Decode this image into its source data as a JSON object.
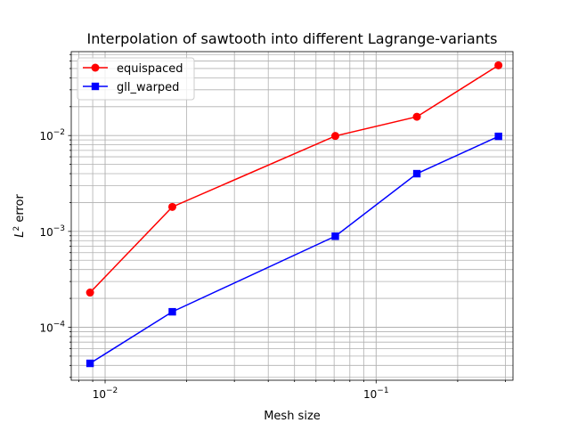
{
  "chart_data": {
    "type": "line",
    "title": "Interpolation of sawtooth into different Lagrange-variants",
    "xlabel": "Mesh size",
    "ylabel_prefix": "L",
    "ylabel_sup": "2",
    "ylabel_suffix": " error",
    "xscale": "log",
    "yscale": "log",
    "xlim": [
      0.0075,
      0.32
    ],
    "ylim": [
      2.8e-05,
      0.075
    ],
    "grid": "major and minor",
    "legend_position": "top-left",
    "x_ticks": [
      {
        "value": 0.01,
        "base": "10",
        "exp": "−2"
      },
      {
        "value": 0.1,
        "base": "10",
        "exp": "−1"
      }
    ],
    "y_ticks": [
      {
        "value": 0.0001,
        "base": "10",
        "exp": "−4"
      },
      {
        "value": 0.001,
        "base": "10",
        "exp": "−3"
      },
      {
        "value": 0.01,
        "base": "10",
        "exp": "−2"
      }
    ],
    "series": [
      {
        "name": "equispaced",
        "color": "#ff0000",
        "marker": "circle",
        "x": [
          0.0088,
          0.0177,
          0.0707,
          0.1414,
          0.2828
        ],
        "y": [
          0.00023,
          0.0018,
          0.0099,
          0.0157,
          0.054
        ]
      },
      {
        "name": "gll_warped",
        "color": "#0000ff",
        "marker": "square",
        "x": [
          0.0088,
          0.0177,
          0.0707,
          0.1414,
          0.2828
        ],
        "y": [
          4.2e-05,
          0.000145,
          0.00089,
          0.004,
          0.0098
        ]
      }
    ]
  }
}
